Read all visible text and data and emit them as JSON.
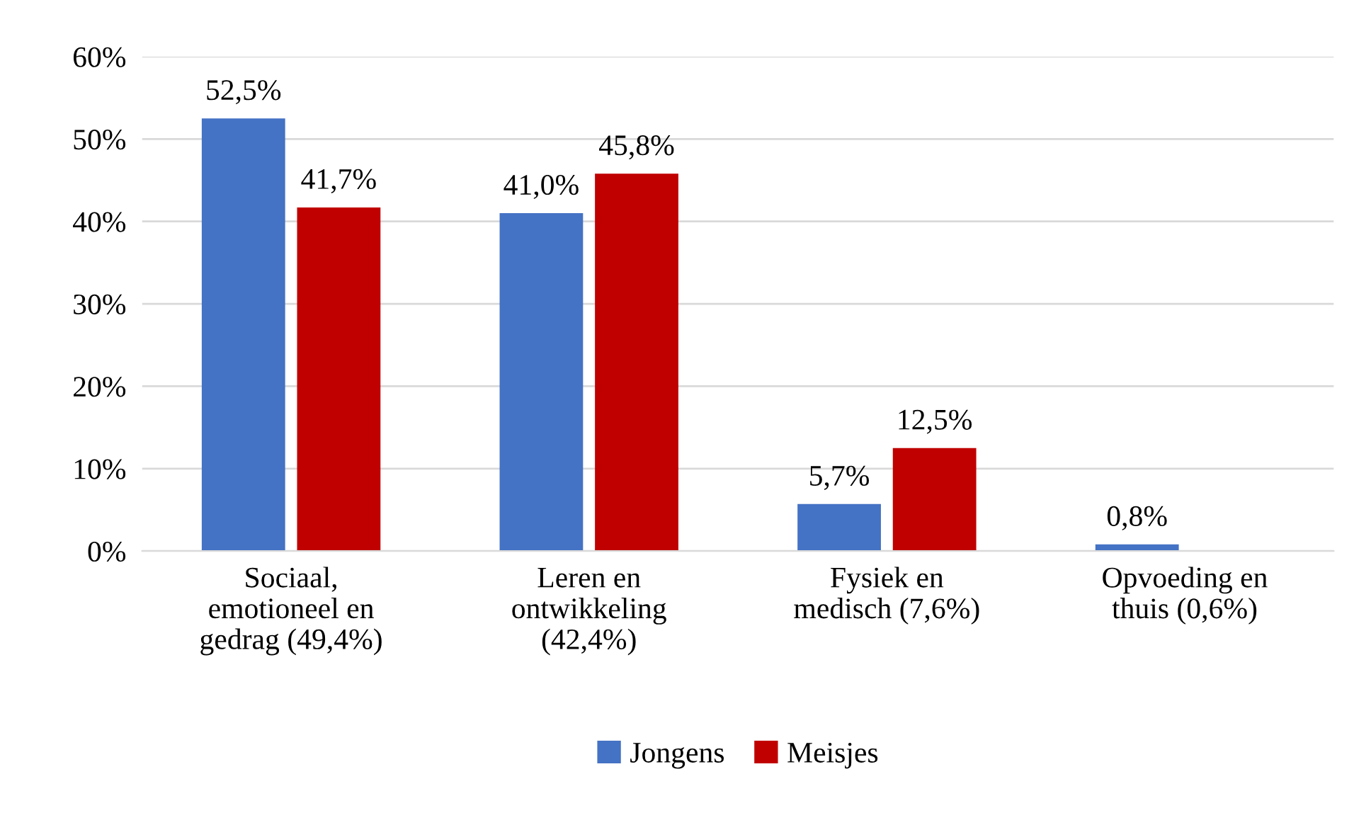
{
  "chart_data": {
    "type": "bar",
    "categories": [
      "Sociaal,\nemotioneel en\ngedrag (49,4%)",
      "Leren en\nontwikkeling\n(42,4%)",
      "Fysiek en\nmedisch (7,6%)",
      "Opvoeding en\nthuis (0,6%)"
    ],
    "series": [
      {
        "name": "Jongens",
        "color": "#4472c4",
        "values": [
          52.5,
          41.0,
          5.7,
          0.8
        ],
        "value_labels": [
          "52,5%",
          "41,0%",
          "5,7%",
          "0,8%"
        ]
      },
      {
        "name": "Meisjes",
        "color": "#c00000",
        "values": [
          41.7,
          45.8,
          12.5,
          null
        ],
        "value_labels": [
          "41,7%",
          "45,8%",
          "12,5%",
          null
        ]
      }
    ],
    "ylim": [
      0,
      60
    ],
    "yticks": [
      {
        "value": 0,
        "label": "0%"
      },
      {
        "value": 10,
        "label": "10%"
      },
      {
        "value": 20,
        "label": "20%"
      },
      {
        "value": 30,
        "label": "30%"
      },
      {
        "value": 40,
        "label": "40%"
      },
      {
        "value": 50,
        "label": "50%"
      },
      {
        "value": 60,
        "label": "60%"
      }
    ],
    "grid": "y",
    "legend": "bottom"
  }
}
